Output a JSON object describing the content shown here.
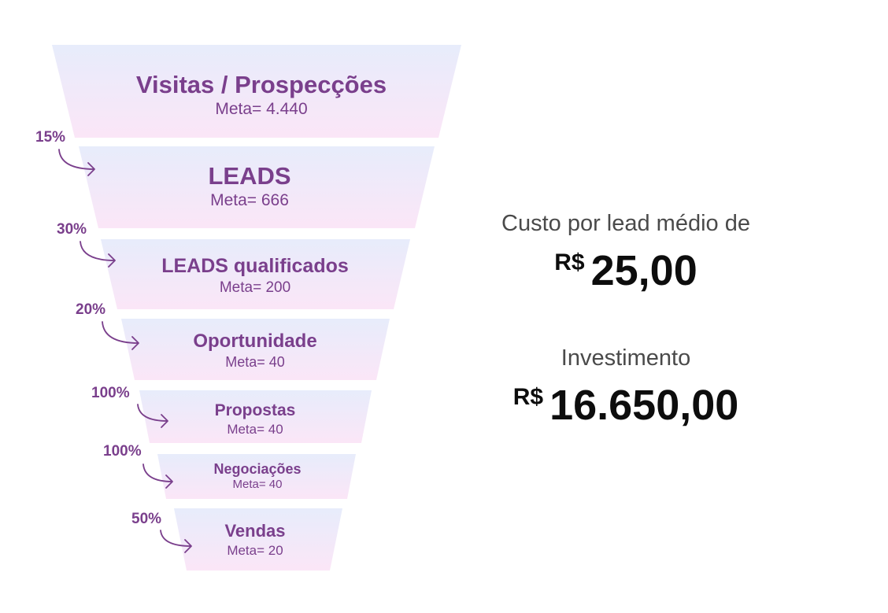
{
  "colors": {
    "text": "#7a3f8c",
    "fill_top": "#e7ecfb",
    "fill_bottom": "#fbe6f7"
  },
  "funnel": {
    "stages": [
      {
        "title": "Visitas / Prospecções",
        "meta": "Meta= 4.440"
      },
      {
        "title": "LEADS",
        "meta": "Meta= 666"
      },
      {
        "title": "LEADS qualificados",
        "meta": "Meta= 200"
      },
      {
        "title": "Oportunidade",
        "meta": "Meta= 40"
      },
      {
        "title": "Propostas",
        "meta": "Meta= 40"
      },
      {
        "title": "Negociações",
        "meta": "Meta= 40"
      },
      {
        "title": "Vendas",
        "meta": "Meta= 20"
      }
    ],
    "conversions": [
      "15%",
      "30%",
      "20%",
      "100%",
      "100%",
      "50%"
    ]
  },
  "summary": {
    "cost_label": "Custo por lead médio de",
    "cost_currency": "R$",
    "cost_value": "25,00",
    "investment_label": "Investimento",
    "investment_currency": "R$",
    "investment_value": "16.650,00"
  }
}
